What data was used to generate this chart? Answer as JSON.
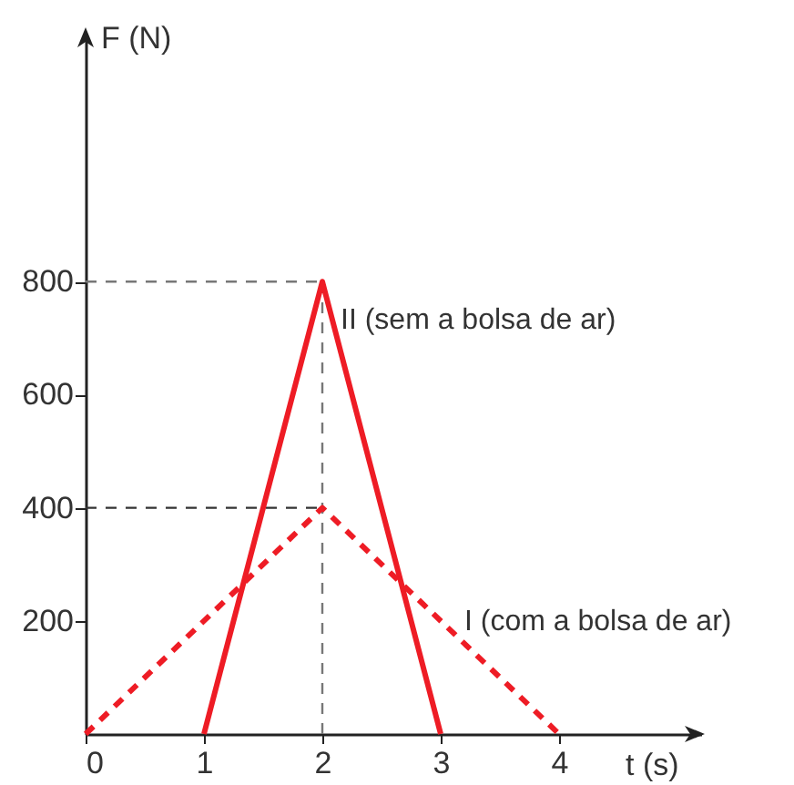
{
  "chart_data": {
    "type": "line",
    "xlabel": "t (s)",
    "ylabel": "F (N)",
    "xlim": [
      0,
      5.2
    ],
    "ylim": [
      0,
      1240
    ],
    "xticks": [
      0,
      1,
      2,
      3,
      4
    ],
    "yticks": [
      200,
      400,
      600,
      800
    ],
    "series": [
      {
        "name": "II (sem a bolsa de ar)",
        "color": "#ee1c25",
        "line_style": "solid",
        "x": [
          1,
          2,
          3
        ],
        "values": [
          0,
          800,
          0
        ]
      },
      {
        "name": "I (com a bolsa de ar)",
        "color": "#ee1c25",
        "line_style": "dashed",
        "x": [
          0,
          2,
          4
        ],
        "values": [
          0,
          400,
          0
        ]
      }
    ],
    "ref_lines": [
      {
        "axis": "y",
        "value": 800,
        "color": "#777777",
        "line_style": "dashed"
      },
      {
        "axis": "y",
        "value": 400,
        "color": "#333333",
        "line_style": "dashed"
      },
      {
        "axis": "x",
        "value": 2,
        "color": "#777777",
        "line_style": "dashed"
      }
    ]
  }
}
